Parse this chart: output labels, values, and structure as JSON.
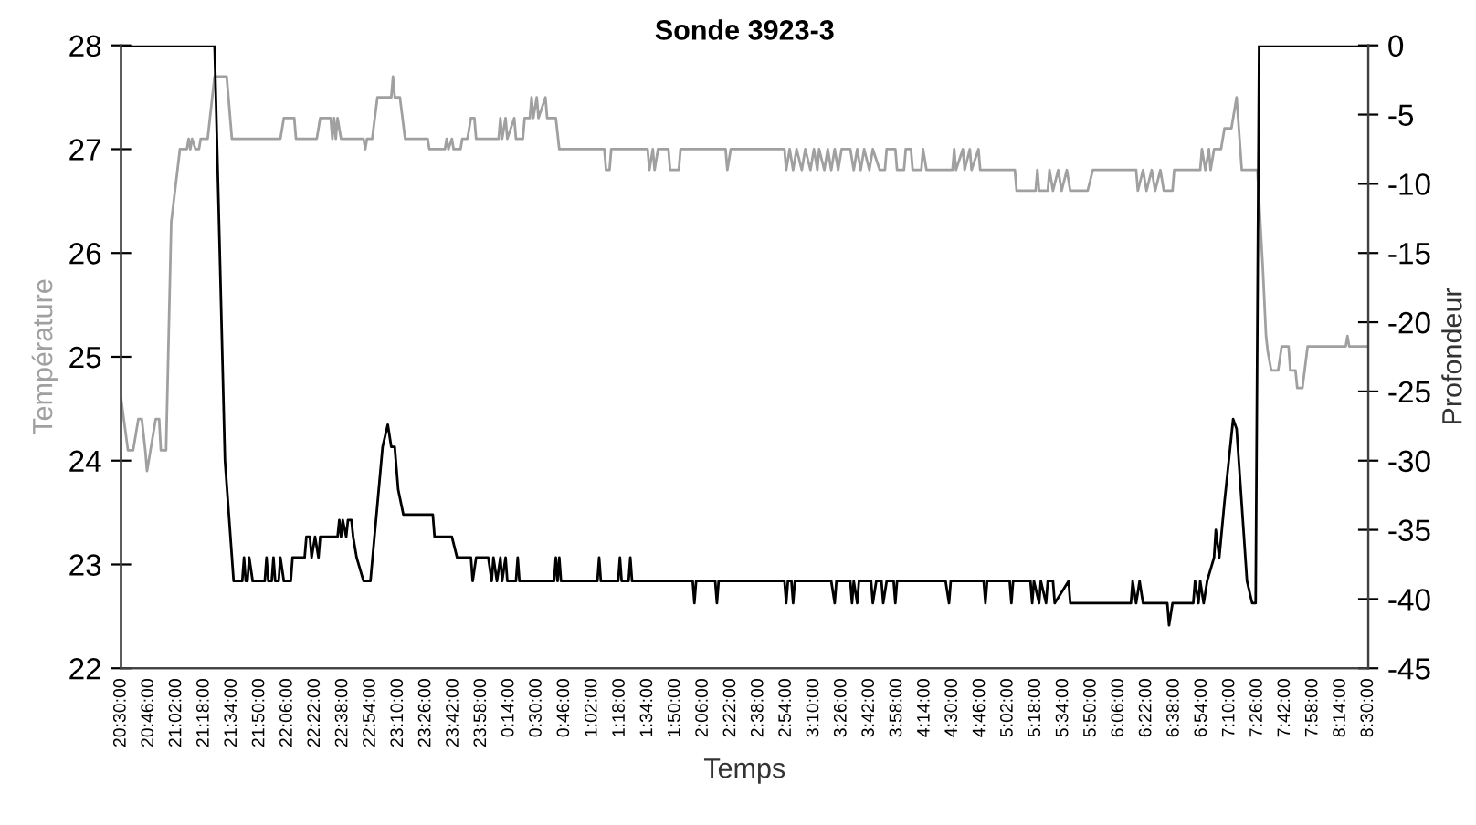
{
  "chart_data": {
    "type": "line",
    "title": "Sonde 3923-3",
    "xlabel": "Temps",
    "ylabel": "Température",
    "y2label": "Profondeur",
    "xlim": [
      "2000-01-01T20:30",
      "2000-01-02T08:30"
    ],
    "xticks": [
      {
        "value": "2000-01-01T20:30",
        "label": "20:30:00"
      },
      {
        "value": "2000-01-01T20:46",
        "label": "20:46:00"
      },
      {
        "value": "2000-01-01T21:02",
        "label": "21:02:00"
      },
      {
        "value": "2000-01-01T21:18",
        "label": "21:18:00"
      },
      {
        "value": "2000-01-01T21:34",
        "label": "21:34:00"
      },
      {
        "value": "2000-01-01T21:50",
        "label": "21:50:00"
      },
      {
        "value": "2000-01-01T22:06",
        "label": "22:06:00"
      },
      {
        "value": "2000-01-01T22:22",
        "label": "22:22:00"
      },
      {
        "value": "2000-01-01T22:38",
        "label": "22:38:00"
      },
      {
        "value": "2000-01-01T22:54",
        "label": "22:54:00"
      },
      {
        "value": "2000-01-01T23:10",
        "label": "23:10:00"
      },
      {
        "value": "2000-01-01T23:26",
        "label": "23:26:00"
      },
      {
        "value": "2000-01-01T23:42",
        "label": "23:42:00"
      },
      {
        "value": "2000-01-01T23:58",
        "label": "23:58:00"
      },
      {
        "value": "2000-01-02T00:14",
        "label": "0:14:00"
      },
      {
        "value": "2000-01-02T00:30",
        "label": "0:30:00"
      },
      {
        "value": "2000-01-02T00:46",
        "label": "0:46:00"
      },
      {
        "value": "2000-01-02T01:02",
        "label": "1:02:00"
      },
      {
        "value": "2000-01-02T01:18",
        "label": "1:18:00"
      },
      {
        "value": "2000-01-02T01:34",
        "label": "1:34:00"
      },
      {
        "value": "2000-01-02T01:50",
        "label": "1:50:00"
      },
      {
        "value": "2000-01-02T02:06",
        "label": "2:06:00"
      },
      {
        "value": "2000-01-02T02:22",
        "label": "2:22:00"
      },
      {
        "value": "2000-01-02T02:38",
        "label": "2:38:00"
      },
      {
        "value": "2000-01-02T02:54",
        "label": "2:54:00"
      },
      {
        "value": "2000-01-02T03:10",
        "label": "3:10:00"
      },
      {
        "value": "2000-01-02T03:26",
        "label": "3:26:00"
      },
      {
        "value": "2000-01-02T03:42",
        "label": "3:42:00"
      },
      {
        "value": "2000-01-02T03:58",
        "label": "3:58:00"
      },
      {
        "value": "2000-01-02T04:14",
        "label": "4:14:00"
      },
      {
        "value": "2000-01-02T04:30",
        "label": "4:30:00"
      },
      {
        "value": "2000-01-02T04:46",
        "label": "4:46:00"
      },
      {
        "value": "2000-01-02T05:02",
        "label": "5:02:00"
      },
      {
        "value": "2000-01-02T05:18",
        "label": "5:18:00"
      },
      {
        "value": "2000-01-02T05:34",
        "label": "5:34:00"
      },
      {
        "value": "2000-01-02T05:50",
        "label": "5:50:00"
      },
      {
        "value": "2000-01-02T06:06",
        "label": "6:06:00"
      },
      {
        "value": "2000-01-02T06:22",
        "label": "6:22:00"
      },
      {
        "value": "2000-01-02T06:38",
        "label": "6:38:00"
      },
      {
        "value": "2000-01-02T06:54",
        "label": "6:54:00"
      },
      {
        "value": "2000-01-02T07:10",
        "label": "7:10:00"
      },
      {
        "value": "2000-01-02T07:26",
        "label": "7:26:00"
      },
      {
        "value": "2000-01-02T07:42",
        "label": "7:42:00"
      },
      {
        "value": "2000-01-02T07:58",
        "label": "7:58:00"
      },
      {
        "value": "2000-01-02T08:14",
        "label": "8:14:00"
      },
      {
        "value": "2000-01-02T08:30",
        "label": "8:30:00"
      }
    ],
    "ylim": [
      22,
      28
    ],
    "yticks": [
      22,
      23,
      24,
      25,
      26,
      27,
      28
    ],
    "y2lim": [
      -45,
      0
    ],
    "y2ticks": [
      -45,
      -40,
      -35,
      -30,
      -25,
      -20,
      -15,
      -10,
      -5,
      0
    ],
    "grid": false,
    "marker": "none",
    "line_style": "solid",
    "series": [
      {
        "color": "#a0a0a0",
        "x": [
          "2000-01-01T20:30",
          "2000-01-01T20:34",
          "2000-01-01T20:37",
          "2000-01-01T20:40",
          "2000-01-01T20:42",
          "2000-01-01T20:44",
          "2000-01-01T20:45",
          "2000-01-01T20:47",
          "2000-01-01T20:50",
          "2000-01-01T20:52",
          "2000-01-01T20:53",
          "2000-01-01T20:56",
          "2000-01-01T20:59",
          "2000-01-01T21:04",
          "2000-01-01T21:08",
          "2000-01-01T21:09",
          "2000-01-01T21:10",
          "2000-01-01T21:11",
          "2000-01-01T21:13",
          "2000-01-01T21:15",
          "2000-01-01T21:16",
          "2000-01-01T21:20",
          "2000-01-01T21:24",
          "2000-01-01T21:31",
          "2000-01-01T21:34",
          "2000-01-01T22:02",
          "2000-01-01T22:04",
          "2000-01-01T22:10",
          "2000-01-01T22:11",
          "2000-01-01T22:23",
          "2000-01-01T22:25",
          "2000-01-01T22:31",
          "2000-01-01T22:32",
          "2000-01-01T22:33",
          "2000-01-01T22:34",
          "2000-01-01T22:35",
          "2000-01-01T22:37",
          "2000-01-01T22:50",
          "2000-01-01T22:51",
          "2000-01-01T22:52",
          "2000-01-01T22:55",
          "2000-01-01T22:58",
          "2000-01-01T23:06",
          "2000-01-01T23:07",
          "2000-01-01T23:08",
          "2000-01-01T23:11",
          "2000-01-01T23:14",
          "2000-01-01T23:27",
          "2000-01-01T23:28",
          "2000-01-01T23:37",
          "2000-01-01T23:38",
          "2000-01-01T23:39",
          "2000-01-01T23:41",
          "2000-01-01T23:42",
          "2000-01-01T23:46",
          "2000-01-01T23:47",
          "2000-01-01T23:50",
          "2000-01-01T23:52",
          "2000-01-01T23:54",
          "2000-01-01T23:55",
          "2000-01-02T00:08",
          "2000-01-02T00:09",
          "2000-01-02T00:10",
          "2000-01-02T00:12",
          "2000-01-02T00:13",
          "2000-01-02T00:17",
          "2000-01-02T00:18",
          "2000-01-02T00:22",
          "2000-01-02T00:23",
          "2000-01-02T00:26",
          "2000-01-02T00:27",
          "2000-01-02T00:28",
          "2000-01-02T00:30",
          "2000-01-02T00:31",
          "2000-01-02T00:35",
          "2000-01-02T00:36",
          "2000-01-02T00:41",
          "2000-01-02T00:43",
          "2000-01-02T01:09",
          "2000-01-02T01:10",
          "2000-01-02T01:12",
          "2000-01-02T01:13",
          "2000-01-02T01:34",
          "2000-01-02T01:35",
          "2000-01-02T01:37",
          "2000-01-02T01:38",
          "2000-01-02T01:40",
          "2000-01-02T01:46",
          "2000-01-02T01:47",
          "2000-01-02T01:52",
          "2000-01-02T01:53",
          "2000-01-02T02:19",
          "2000-01-02T02:20",
          "2000-01-02T02:22",
          "2000-01-02T02:53",
          "2000-01-02T02:54",
          "2000-01-02T02:56",
          "2000-01-02T02:58",
          "2000-01-02T03:00",
          "2000-01-02T03:03",
          "2000-01-02T03:05",
          "2000-01-02T03:08",
          "2000-01-02T03:10",
          "2000-01-02T03:12",
          "2000-01-02T03:13",
          "2000-01-02T03:16",
          "2000-01-02T03:18",
          "2000-01-02T03:20",
          "2000-01-02T03:22",
          "2000-01-02T03:24",
          "2000-01-02T03:26",
          "2000-01-02T03:31",
          "2000-01-02T03:33",
          "2000-01-02T03:35",
          "2000-01-02T03:37",
          "2000-01-02T03:39",
          "2000-01-02T03:42",
          "2000-01-02T03:44",
          "2000-01-02T03:48",
          "2000-01-02T03:51",
          "2000-01-02T03:52",
          "2000-01-02T03:57",
          "2000-01-02T03:58",
          "2000-01-02T04:02",
          "2000-01-02T04:03",
          "2000-01-02T04:06",
          "2000-01-02T04:07",
          "2000-01-02T04:12",
          "2000-01-02T04:13",
          "2000-01-02T04:15",
          "2000-01-02T04:30",
          "2000-01-02T04:31",
          "2000-01-02T04:32",
          "2000-01-02T04:36",
          "2000-01-02T04:37",
          "2000-01-02T04:40",
          "2000-01-02T04:41",
          "2000-01-02T04:45",
          "2000-01-02T04:46",
          "2000-01-02T05:06",
          "2000-01-02T05:07",
          "2000-01-02T05:18",
          "2000-01-02T05:19",
          "2000-01-02T05:20",
          "2000-01-02T05:25",
          "2000-01-02T05:26",
          "2000-01-02T05:28",
          "2000-01-02T05:31",
          "2000-01-02T05:33",
          "2000-01-02T05:36",
          "2000-01-02T05:38",
          "2000-01-02T05:48",
          "2000-01-02T05:51",
          "2000-01-02T06:16",
          "2000-01-02T06:17",
          "2000-01-02T06:20",
          "2000-01-02T06:22",
          "2000-01-02T06:25",
          "2000-01-02T06:27",
          "2000-01-02T06:30",
          "2000-01-02T06:32",
          "2000-01-02T06:37",
          "2000-01-02T06:38",
          "2000-01-02T06:53",
          "2000-01-02T06:54",
          "2000-01-02T06:56",
          "2000-01-02T06:58",
          "2000-01-02T06:59",
          "2000-01-02T07:01",
          "2000-01-02T07:05",
          "2000-01-02T07:07",
          "2000-01-02T07:11",
          "2000-01-02T07:14",
          "2000-01-02T07:17",
          "2000-01-02T07:26",
          "2000-01-02T07:29",
          "2000-01-02T07:31",
          "2000-01-02T07:32",
          "2000-01-02T07:34",
          "2000-01-02T07:38",
          "2000-01-02T07:40",
          "2000-01-02T07:44",
          "2000-01-02T07:45",
          "2000-01-02T07:48",
          "2000-01-02T07:49",
          "2000-01-02T07:52",
          "2000-01-02T07:55",
          "2000-01-02T08:17",
          "2000-01-02T08:18",
          "2000-01-02T08:19",
          "2000-01-02T08:30"
        ],
        "values": [
          24.6,
          24.1,
          24.1,
          24.4,
          24.4,
          24.1,
          23.9,
          24.1,
          24.4,
          24.4,
          24.1,
          24.1,
          26.3,
          27.0,
          27.0,
          27.1,
          27.0,
          27.1,
          27.0,
          27.0,
          27.1,
          27.1,
          27.7,
          27.7,
          27.1,
          27.1,
          27.3,
          27.3,
          27.1,
          27.1,
          27.3,
          27.3,
          27.1,
          27.3,
          27.1,
          27.3,
          27.1,
          27.1,
          27.0,
          27.1,
          27.1,
          27.5,
          27.5,
          27.7,
          27.5,
          27.5,
          27.1,
          27.1,
          27.0,
          27.0,
          27.1,
          27.0,
          27.1,
          27.0,
          27.0,
          27.1,
          27.1,
          27.3,
          27.3,
          27.1,
          27.1,
          27.3,
          27.1,
          27.3,
          27.1,
          27.3,
          27.1,
          27.1,
          27.3,
          27.3,
          27.5,
          27.3,
          27.5,
          27.3,
          27.5,
          27.3,
          27.3,
          27.0,
          27.0,
          26.8,
          26.8,
          27.0,
          27.0,
          26.8,
          27.0,
          26.8,
          27.0,
          27.0,
          26.8,
          26.8,
          27.0,
          27.0,
          26.8,
          27.0,
          27.0,
          26.8,
          27.0,
          26.8,
          27.0,
          26.8,
          27.0,
          26.8,
          27.0,
          26.8,
          27.0,
          26.8,
          27.0,
          26.8,
          27.0,
          26.8,
          27.0,
          27.0,
          26.8,
          27.0,
          26.8,
          27.0,
          26.8,
          27.0,
          26.8,
          26.8,
          27.0,
          27.0,
          26.8,
          26.8,
          27.0,
          27.0,
          26.8,
          26.8,
          27.0,
          26.8,
          26.8,
          27.0,
          26.8,
          27.0,
          26.8,
          27.0,
          26.8,
          27.0,
          26.8,
          26.8,
          26.6,
          26.6,
          26.8,
          26.6,
          26.6,
          26.8,
          26.6,
          26.8,
          26.6,
          26.8,
          26.6,
          26.6,
          26.8,
          26.8,
          26.6,
          26.8,
          26.6,
          26.8,
          26.6,
          26.8,
          26.6,
          26.6,
          26.8,
          26.8,
          27.0,
          26.8,
          27.0,
          26.8,
          27.0,
          27.0,
          27.2,
          27.2,
          27.5,
          26.8,
          26.8,
          25.9,
          25.2,
          25.05,
          24.87,
          24.87,
          25.1,
          25.1,
          24.87,
          24.87,
          24.7,
          24.7,
          25.1,
          25.1,
          25.2,
          25.1,
          25.1
        ]
      },
      {
        "color": "#000000",
        "axis": "y2",
        "x": [
          "2000-01-01T20:30",
          "2000-01-01T21:24",
          "2000-01-01T21:30",
          "2000-01-01T21:35",
          "2000-01-01T21:40",
          "2000-01-01T21:41",
          "2000-01-01T21:42",
          "2000-01-01T21:43",
          "2000-01-01T21:44",
          "2000-01-01T21:46",
          "2000-01-01T21:53",
          "2000-01-01T21:54",
          "2000-01-01T21:55",
          "2000-01-01T21:57",
          "2000-01-01T21:58",
          "2000-01-01T21:59",
          "2000-01-01T22:01",
          "2000-01-01T22:02",
          "2000-01-01T22:04",
          "2000-01-01T22:08",
          "2000-01-01T22:09",
          "2000-01-01T22:16",
          "2000-01-01T22:17",
          "2000-01-01T22:19",
          "2000-01-01T22:20",
          "2000-01-01T22:22",
          "2000-01-01T22:24",
          "2000-01-01T22:25",
          "2000-01-01T22:35",
          "2000-01-01T22:36",
          "2000-01-01T22:37",
          "2000-01-01T22:38",
          "2000-01-01T22:40",
          "2000-01-01T22:41",
          "2000-01-01T22:43",
          "2000-01-01T22:44",
          "2000-01-01T22:46",
          "2000-01-01T22:50",
          "2000-01-01T22:54",
          "2000-01-01T23:01",
          "2000-01-01T23:04",
          "2000-01-01T23:06",
          "2000-01-01T23:08",
          "2000-01-01T23:10",
          "2000-01-01T23:13",
          "2000-01-01T23:30",
          "2000-01-01T23:31",
          "2000-01-01T23:41",
          "2000-01-01T23:44",
          "2000-01-01T23:52",
          "2000-01-01T23:53",
          "2000-01-01T23:55",
          "2000-01-02T00:02",
          "2000-01-02T00:04",
          "2000-01-02T00:05",
          "2000-01-02T00:07",
          "2000-01-02T00:09",
          "2000-01-02T00:10",
          "2000-01-02T00:12",
          "2000-01-02T00:13",
          "2000-01-02T00:18",
          "2000-01-02T00:19",
          "2000-01-02T00:20",
          "2000-01-02T00:40",
          "2000-01-02T00:41",
          "2000-01-02T00:42",
          "2000-01-02T00:43",
          "2000-01-02T00:44",
          "2000-01-02T01:05",
          "2000-01-02T01:06",
          "2000-01-02T01:07",
          "2000-01-02T01:17",
          "2000-01-02T01:18",
          "2000-01-02T01:19",
          "2000-01-02T01:23",
          "2000-01-02T01:24",
          "2000-01-02T01:25",
          "2000-01-02T02:00",
          "2000-01-02T02:01",
          "2000-01-02T02:02",
          "2000-01-02T02:13",
          "2000-01-02T02:14",
          "2000-01-02T02:15",
          "2000-01-02T02:53",
          "2000-01-02T02:54",
          "2000-01-02T02:55",
          "2000-01-02T02:57",
          "2000-01-02T02:58",
          "2000-01-02T02:59",
          "2000-01-02T03:20",
          "2000-01-02T03:22",
          "2000-01-02T03:23",
          "2000-01-02T03:31",
          "2000-01-02T03:32",
          "2000-01-02T03:33",
          "2000-01-02T03:35",
          "2000-01-02T03:36",
          "2000-01-02T03:43",
          "2000-01-02T03:44",
          "2000-01-02T03:46",
          "2000-01-02T03:49",
          "2000-01-02T03:50",
          "2000-01-02T03:52",
          "2000-01-02T03:56",
          "2000-01-02T03:57",
          "2000-01-02T03:58",
          "2000-01-02T04:26",
          "2000-01-02T04:28",
          "2000-01-02T04:29",
          "2000-01-02T04:48",
          "2000-01-02T04:49",
          "2000-01-02T04:50",
          "2000-01-02T05:03",
          "2000-01-02T05:04",
          "2000-01-02T05:05",
          "2000-01-02T05:15",
          "2000-01-02T05:16",
          "2000-01-02T05:17",
          "2000-01-02T05:20",
          "2000-01-02T05:21",
          "2000-01-02T05:24",
          "2000-01-02T05:25",
          "2000-01-02T05:28",
          "2000-01-02T05:29",
          "2000-01-02T05:37",
          "2000-01-02T05:38",
          "2000-01-02T06:13",
          "2000-01-02T06:14",
          "2000-01-02T06:16",
          "2000-01-02T06:18",
          "2000-01-02T06:20",
          "2000-01-02T06:34",
          "2000-01-02T06:35",
          "2000-01-02T06:37",
          "2000-01-02T06:49",
          "2000-01-02T06:50",
          "2000-01-02T06:52",
          "2000-01-02T06:53",
          "2000-01-02T06:55",
          "2000-01-02T06:57",
          "2000-01-02T07:01",
          "2000-01-02T07:02",
          "2000-01-02T07:04",
          "2000-01-02T07:07",
          "2000-01-02T07:12",
          "2000-01-02T07:14",
          "2000-01-02T07:20",
          "2000-01-02T07:23",
          "2000-01-02T07:25",
          "2000-01-02T07:27",
          "2000-01-02T08:30"
        ],
        "values": [
          0,
          0,
          -30,
          -38.7,
          -38.7,
          -37,
          -38.7,
          -38.7,
          -37,
          -38.7,
          -38.7,
          -37,
          -38.7,
          -38.7,
          -37,
          -38.7,
          -38.7,
          -37,
          -38.7,
          -38.7,
          -37,
          -37,
          -35.5,
          -35.5,
          -37,
          -35.5,
          -37,
          -35.5,
          -35.5,
          -34.3,
          -35.5,
          -34.3,
          -35.5,
          -34.3,
          -34.3,
          -35.5,
          -37,
          -38.7,
          -38.7,
          -29.0,
          -27.4,
          -29.0,
          -29.0,
          -32.1,
          -33.9,
          -33.9,
          -35.5,
          -35.5,
          -37,
          -37,
          -38.7,
          -37,
          -37,
          -38.7,
          -37,
          -38.7,
          -37,
          -38.7,
          -37,
          -38.7,
          -38.7,
          -37,
          -38.7,
          -38.7,
          -37,
          -38.7,
          -37,
          -38.7,
          -38.7,
          -37,
          -38.7,
          -38.7,
          -37,
          -38.7,
          -38.7,
          -37,
          -38.7,
          -38.7,
          -40.3,
          -38.7,
          -38.7,
          -40.3,
          -38.7,
          -38.7,
          -40.3,
          -38.7,
          -38.7,
          -40.3,
          -38.7,
          -38.7,
          -40.3,
          -38.7,
          -38.7,
          -40.3,
          -38.7,
          -40.3,
          -38.7,
          -38.7,
          -40.3,
          -38.7,
          -38.7,
          -40.3,
          -38.7,
          -38.7,
          -40.3,
          -38.7,
          -38.7,
          -40.3,
          -38.7,
          -38.7,
          -40.3,
          -38.7,
          -38.7,
          -40.3,
          -38.7,
          -38.7,
          -40.3,
          -38.7,
          -40.3,
          -38.7,
          -40.3,
          -38.7,
          -38.7,
          -40.3,
          -38.7,
          -40.3,
          -40.3,
          -38.7,
          -40.3,
          -38.7,
          -40.3,
          -40.3,
          -41.9,
          -40.3,
          -40.3,
          -38.7,
          -40.3,
          -38.7,
          -40.3,
          -38.7,
          -37,
          -35,
          -37,
          -33,
          -27.0,
          -27.7,
          -38.7,
          -40.3,
          -40.3,
          0,
          0
        ]
      }
    ]
  }
}
